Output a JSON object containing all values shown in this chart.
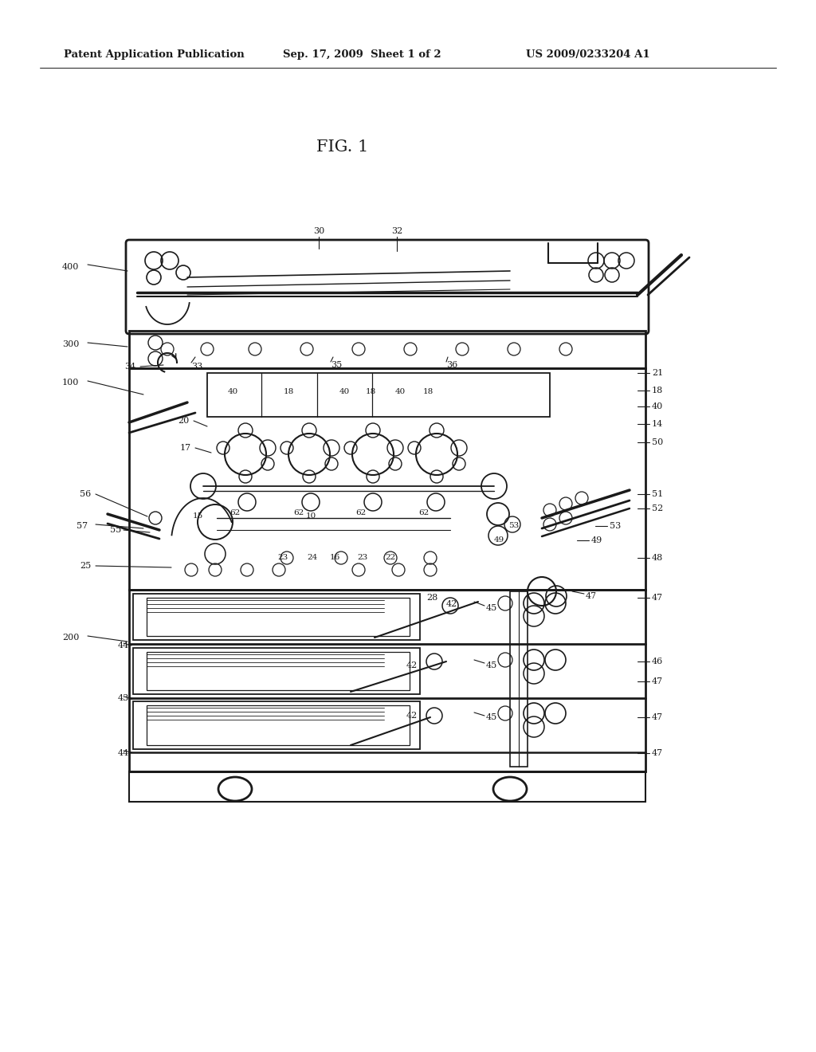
{
  "title": "FIG. 1",
  "header_left": "Patent Application Publication",
  "header_center": "Sep. 17, 2009  Sheet 1 of 2",
  "header_right": "US 2009/0233204 A1",
  "bg_color": "#ffffff",
  "text_color": "#1a1a1a",
  "line_color": "#1a1a1a",
  "header_fontsize": 9.5,
  "title_fontsize": 15,
  "label_fontsize": 8
}
